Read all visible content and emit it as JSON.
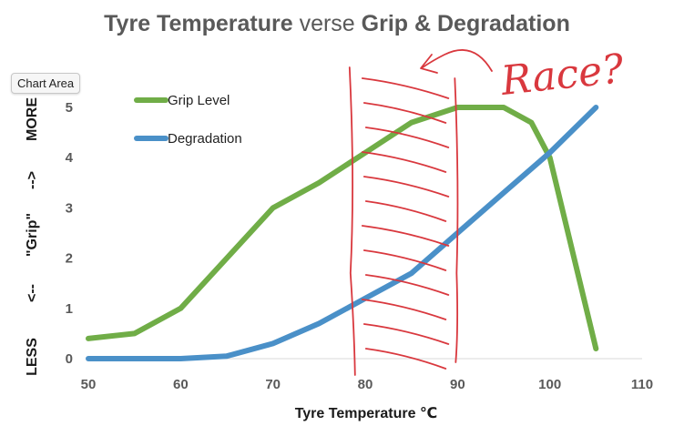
{
  "tooltip": "Chart Area",
  "chart_data": {
    "type": "line",
    "title_parts": [
      {
        "text": "Tyre Temperature",
        "bold": true
      },
      {
        "text": " verse ",
        "bold": false
      },
      {
        "text": "Grip & Degradation",
        "bold": true
      }
    ],
    "xlabel": "Tyre Temperature ℃",
    "ylabel": [
      "LESS",
      "<--",
      "\"Grip\"",
      "-->",
      "MORE"
    ],
    "xlim": [
      50,
      110
    ],
    "ylim": [
      0,
      5
    ],
    "x_ticks": [
      50,
      60,
      70,
      80,
      90,
      100,
      110
    ],
    "y_ticks": [
      0,
      1,
      2,
      3,
      4,
      5
    ],
    "legend": "top-left",
    "series": [
      {
        "name": "Grip Level",
        "color": "#70ad47",
        "x": [
          50,
          55,
          60,
          65,
          70,
          75,
          80,
          85,
          90,
          95,
          98,
          100,
          105
        ],
        "y": [
          0.4,
          0.5,
          1.0,
          2.0,
          3.0,
          3.5,
          4.1,
          4.7,
          5.0,
          5.0,
          4.7,
          4.0,
          0.2
        ]
      },
      {
        "name": "Degradation",
        "color": "#4a90c8",
        "x": [
          50,
          55,
          60,
          65,
          70,
          75,
          80,
          85,
          90,
          95,
          100,
          105
        ],
        "y": [
          0.0,
          0.0,
          0.0,
          0.05,
          0.3,
          0.7,
          1.2,
          1.7,
          2.5,
          3.3,
          4.1,
          5.0
        ]
      }
    ],
    "annotations": {
      "hatched_band": {
        "x_from": 78.5,
        "x_to": 90
      },
      "handwriting": "Race?",
      "color": "#d9383e"
    }
  }
}
